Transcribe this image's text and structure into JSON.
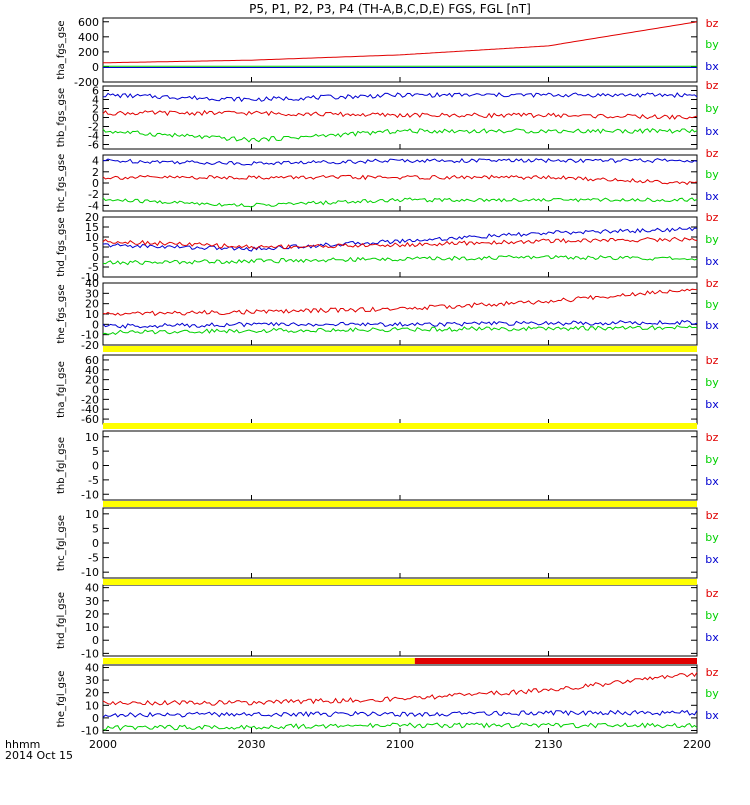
{
  "title": "P5, P1, P2, P3, P4 (TH-A,B,C,D,E) FGS, FGL [nT]",
  "footer": {
    "time_unit_label": "hhmm",
    "date_label": "2014 Oct 15"
  },
  "colors": {
    "bz": "#e00000",
    "by": "#00d000",
    "bx": "#0000d0",
    "bar_yellow": "#ffff00",
    "bar_red": "#e00000",
    "axes": "#000000"
  },
  "chart_data": [
    {
      "type": "line",
      "ylabel": "tha_fgs_gse",
      "yticks": [
        "600",
        "400",
        "200",
        "0",
        "-200"
      ],
      "ylim": [
        -200,
        650
      ],
      "legend": [
        "bz",
        "by",
        "bx"
      ],
      "series": [
        {
          "name": "bz",
          "x": [
            "2000",
            "2030",
            "2100",
            "2130",
            "2200"
          ],
          "values": [
            55,
            90,
            160,
            280,
            600
          ]
        },
        {
          "name": "by",
          "x": [
            "2000",
            "2200"
          ],
          "values": [
            10,
            10
          ]
        },
        {
          "name": "bx",
          "x": [
            "2000",
            "2200"
          ],
          "values": [
            -8,
            -8
          ]
        }
      ]
    },
    {
      "type": "line",
      "ylabel": "thb_fgs_gse",
      "yticks": [
        "6",
        "4",
        "2",
        "0",
        "-2",
        "-4",
        "-6"
      ],
      "ylim": [
        -7,
        7
      ],
      "legend": [
        "bz",
        "by",
        "bx"
      ],
      "series": [
        {
          "name": "bx",
          "x": [
            "2000",
            "2030",
            "2100",
            "2130",
            "2200"
          ],
          "values": [
            5,
            4,
            5,
            5,
            5
          ]
        },
        {
          "name": "bz",
          "x": [
            "2000",
            "2030",
            "2100",
            "2130",
            "2200"
          ],
          "values": [
            1,
            1,
            0.5,
            0.5,
            0
          ]
        },
        {
          "name": "by",
          "x": [
            "2000",
            "2030",
            "2100",
            "2130",
            "2200"
          ],
          "values": [
            -3,
            -5,
            -3,
            -3,
            -3
          ]
        }
      ]
    },
    {
      "type": "line",
      "ylabel": "thc_fgs_gse",
      "yticks": [
        "4",
        "2",
        "0",
        "-2",
        "-4"
      ],
      "ylim": [
        -5,
        5
      ],
      "legend": [
        "bz",
        "by",
        "bx"
      ],
      "series": [
        {
          "name": "bx",
          "x": [
            "2000",
            "2030",
            "2100",
            "2130",
            "2200"
          ],
          "values": [
            4,
            3.5,
            4,
            4,
            4
          ]
        },
        {
          "name": "bz",
          "x": [
            "2000",
            "2030",
            "2100",
            "2130",
            "2200"
          ],
          "values": [
            1,
            1,
            1,
            1,
            0
          ]
        },
        {
          "name": "by",
          "x": [
            "2000",
            "2030",
            "2100",
            "2130",
            "2200"
          ],
          "values": [
            -3,
            -4,
            -3,
            -3,
            -3
          ]
        }
      ]
    },
    {
      "type": "line",
      "ylabel": "thd_fgs_gse",
      "yticks": [
        "20",
        "15",
        "10",
        "5",
        "0",
        "-5",
        "-10"
      ],
      "ylim": [
        -10,
        20
      ],
      "legend": [
        "bz",
        "by",
        "bx"
      ],
      "series": [
        {
          "name": "bx",
          "x": [
            "2000",
            "2030",
            "2100",
            "2130",
            "2200"
          ],
          "values": [
            6,
            4,
            8,
            12,
            14
          ]
        },
        {
          "name": "bz",
          "x": [
            "2000",
            "2030",
            "2100",
            "2130",
            "2200"
          ],
          "values": [
            8,
            5,
            6,
            8,
            9
          ]
        },
        {
          "name": "by",
          "x": [
            "2000",
            "2030",
            "2100",
            "2130",
            "2200"
          ],
          "values": [
            -3,
            -2,
            -1,
            0,
            -1
          ]
        }
      ]
    },
    {
      "type": "line",
      "ylabel": "the_fgs_gse",
      "yticks": [
        "40",
        "30",
        "20",
        "10",
        "0",
        "-10",
        "-20"
      ],
      "ylim": [
        -20,
        40
      ],
      "legend": [
        "bz",
        "by",
        "bx"
      ],
      "series": [
        {
          "name": "bz",
          "x": [
            "2000",
            "2030",
            "2100",
            "2130",
            "2200"
          ],
          "values": [
            10,
            12,
            15,
            22,
            35
          ]
        },
        {
          "name": "bx",
          "x": [
            "2000",
            "2030",
            "2100",
            "2130",
            "2200"
          ],
          "values": [
            -2,
            0,
            0,
            1,
            2
          ]
        },
        {
          "name": "by",
          "x": [
            "2000",
            "2030",
            "2100",
            "2130",
            "2200"
          ],
          "values": [
            -8,
            -6,
            -5,
            -4,
            -3
          ]
        }
      ]
    },
    {
      "type": "line",
      "ylabel": "tha_fgl_gse",
      "yticks": [
        "60",
        "40",
        "20",
        "0",
        "-20",
        "-40",
        "-60"
      ],
      "ylim": [
        -70,
        70
      ],
      "legend": [
        "bz",
        "by",
        "bx"
      ],
      "bar": [
        {
          "color": "yellow",
          "from": "2000",
          "to": "2200"
        }
      ],
      "series": []
    },
    {
      "type": "line",
      "ylabel": "thb_fgl_gse",
      "yticks": [
        "10",
        "5",
        "0",
        "-5",
        "-10"
      ],
      "ylim": [
        -12,
        12
      ],
      "legend": [
        "bz",
        "by",
        "bx"
      ],
      "bar": [
        {
          "color": "yellow",
          "from": "2000",
          "to": "2200"
        }
      ],
      "series": []
    },
    {
      "type": "line",
      "ylabel": "thc_fgl_gse",
      "yticks": [
        "10",
        "5",
        "0",
        "-5",
        "-10"
      ],
      "ylim": [
        -12,
        12
      ],
      "legend": [
        "bz",
        "by",
        "bx"
      ],
      "bar": [
        {
          "color": "yellow",
          "from": "2000",
          "to": "2200"
        }
      ],
      "series": []
    },
    {
      "type": "line",
      "ylabel": "thd_fgl_gse",
      "yticks": [
        "40",
        "30",
        "20",
        "10",
        "0",
        "-10"
      ],
      "ylim": [
        -12,
        42
      ],
      "legend": [
        "bz",
        "by",
        "bx"
      ],
      "bar": [
        {
          "color": "yellow",
          "from": "2000",
          "to": "2200"
        }
      ],
      "series": []
    },
    {
      "type": "line",
      "ylabel": "the_fgl_gse",
      "yticks": [
        "40",
        "30",
        "20",
        "10",
        "0",
        "-10"
      ],
      "ylim": [
        -12,
        42
      ],
      "legend": [
        "bz",
        "by",
        "bx"
      ],
      "bar": [
        {
          "color": "yellow",
          "from": "2000",
          "to": "2103"
        },
        {
          "color": "red",
          "from": "2103",
          "to": "2200"
        }
      ],
      "series": [
        {
          "name": "bz",
          "x": [
            "2000",
            "2030",
            "2100",
            "2130",
            "2200"
          ],
          "values": [
            12,
            12,
            15,
            22,
            35
          ]
        },
        {
          "name": "bx",
          "x": [
            "2000",
            "2030",
            "2100",
            "2130",
            "2200"
          ],
          "values": [
            2,
            3,
            3,
            4,
            4
          ]
        },
        {
          "name": "by",
          "x": [
            "2000",
            "2030",
            "2100",
            "2130",
            "2200"
          ],
          "values": [
            -8,
            -7,
            -6,
            -6,
            -6
          ]
        }
      ]
    }
  ],
  "xaxis": {
    "tick_labels": [
      "2000",
      "2030",
      "2100",
      "2130",
      "2200"
    ],
    "minutes": [
      0,
      30,
      60,
      90,
      120
    ]
  }
}
